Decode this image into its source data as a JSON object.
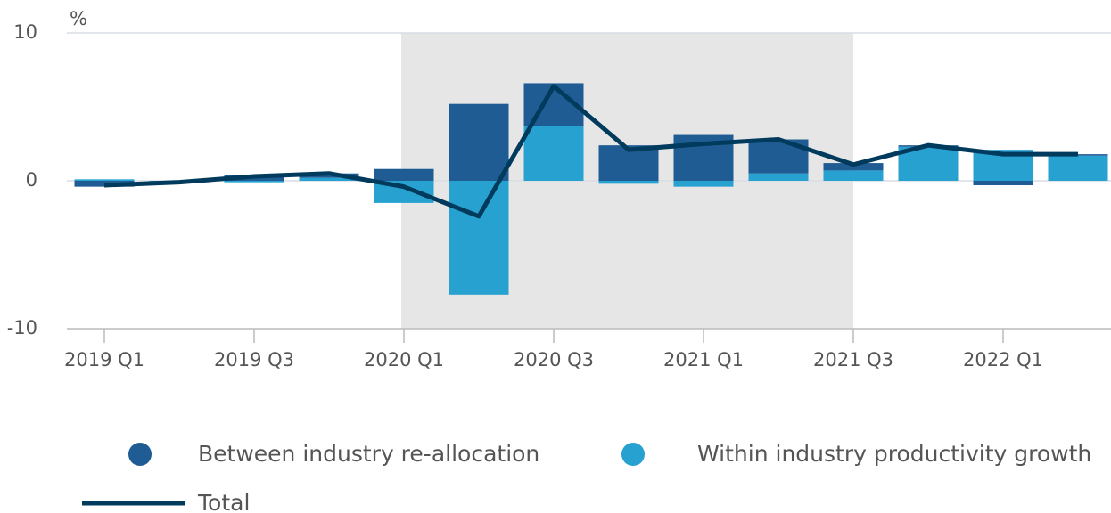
{
  "chart_data": {
    "type": "bar",
    "stacked": true,
    "y_label": "%",
    "categories": [
      "2019 Q1",
      null,
      "2019 Q3",
      null,
      "2020 Q1",
      null,
      "2020 Q3",
      null,
      "2021 Q1",
      null,
      "2021 Q3",
      null,
      "2022 Q1",
      null
    ],
    "series": [
      {
        "name": "Between industry re-allocation",
        "type": "bar",
        "color": "#1f5c94",
        "values": [
          -0.4,
          0.0,
          0.4,
          0.3,
          0.8,
          5.2,
          2.9,
          2.4,
          3.1,
          2.3,
          0.5,
          0.1,
          -0.3,
          0.1
        ]
      },
      {
        "name": "Within industry productivity growth",
        "type": "bar",
        "color": "#27a1cf",
        "values": [
          0.1,
          -0.1,
          -0.1,
          0.2,
          -1.5,
          -7.7,
          3.7,
          -0.2,
          -0.4,
          0.5,
          0.7,
          2.3,
          2.1,
          1.7
        ]
      },
      {
        "name": "Total",
        "type": "line",
        "color": "#003a5c",
        "values": [
          -0.3,
          -0.1,
          0.3,
          0.5,
          -0.4,
          -2.4,
          6.4,
          2.1,
          2.5,
          2.8,
          1.1,
          2.4,
          1.8,
          1.8
        ]
      }
    ],
    "ylim": [
      -10,
      10
    ],
    "yticks": [
      -10,
      0,
      10
    ],
    "grid": true,
    "shade": [
      "2020 Q1",
      "2021 Q3"
    ]
  }
}
